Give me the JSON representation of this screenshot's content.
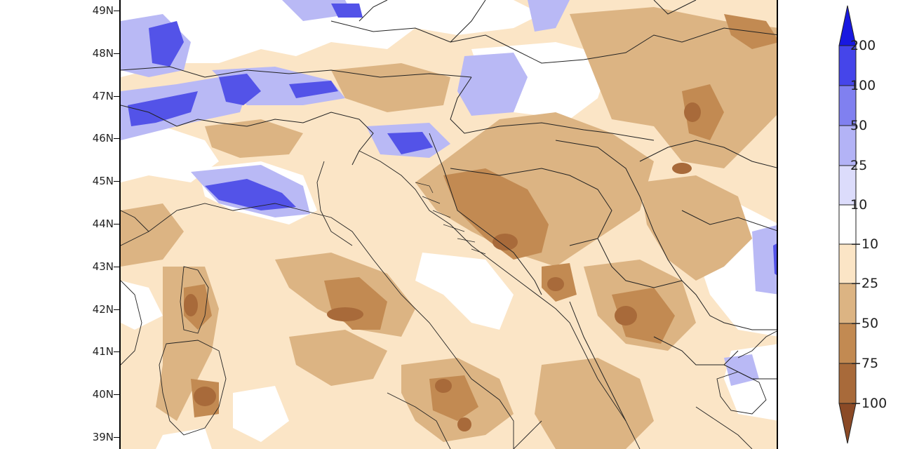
{
  "map": {
    "latitude_labels": [
      "49N",
      "48N",
      "47N",
      "46N",
      "45N",
      "44N",
      "43N",
      "42N",
      "41N",
      "40N",
      "39N"
    ],
    "colors": {
      "blue_strong": "#3b3be8",
      "blue_mid": "#7d7df0",
      "blue_light": "#b9b9f5",
      "blue_pale": "#dcdcfa",
      "white": "#ffffff",
      "tan_pale": "#fbe5c6",
      "tan": "#dcb483",
      "brown": "#c28a52",
      "brown_dark": "#a86a3a",
      "brown_darkest": "#8b4a26",
      "border": "#222222"
    }
  },
  "legend": {
    "labels": [
      "200",
      "100",
      "50",
      "25",
      "10",
      "−10",
      "−25",
      "−50",
      "−75",
      "−100"
    ],
    "bins": [
      {
        "color": "#1818e0",
        "shape": "triangle-top"
      },
      {
        "color": "#4545ea"
      },
      {
        "color": "#8080f0"
      },
      {
        "color": "#b3b3f6"
      },
      {
        "color": "#dcdcfb"
      },
      {
        "color": "#ffffff"
      },
      {
        "color": "#fbe5c6"
      },
      {
        "color": "#dcb483"
      },
      {
        "color": "#c28a52"
      },
      {
        "color": "#a86a3a"
      },
      {
        "color": "#8b4a26",
        "shape": "triangle-bottom"
      }
    ]
  }
}
